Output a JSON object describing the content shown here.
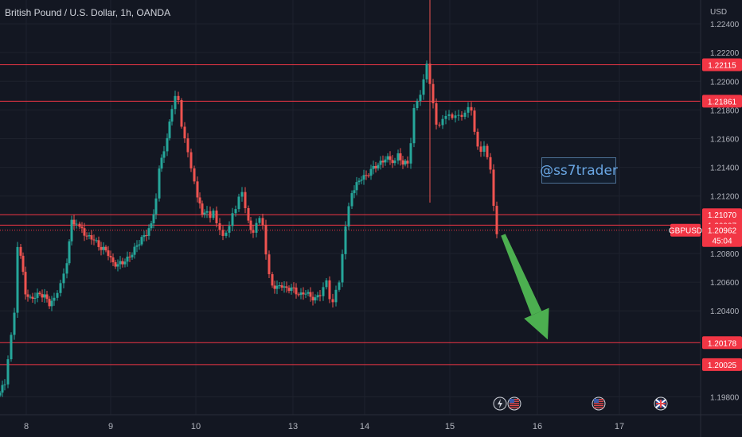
{
  "header": {
    "title": "British Pound / U.S. Dollar, 1h, OANDA",
    "currency": "USD"
  },
  "watermark": "@ss7trader",
  "symbol": "GBPUSD",
  "countdown": "45:04",
  "colors": {
    "background": "#131722",
    "up": "#26a69a",
    "down": "#ef5350",
    "level_line": "#f23645",
    "arrow": "#4caf50",
    "grid": "#1e222d",
    "text": "#b2b5be"
  },
  "chart_data": {
    "type": "candlestick",
    "title": "British Pound / U.S. Dollar, 1h, OANDA",
    "ylim": [
      1.1972,
      1.225
    ],
    "y_ticks": [
      "1.22400",
      "1.22200",
      "1.22000",
      "1.21800",
      "1.21600",
      "1.21400",
      "1.21200",
      "1.20800",
      "1.20600",
      "1.20400",
      "1.19800"
    ],
    "x_ticks": [
      "8",
      "9",
      "10",
      "13",
      "14",
      "15",
      "16",
      "17"
    ],
    "grid": true,
    "horizontal_levels": [
      {
        "label": "1.22115",
        "value": 1.22115
      },
      {
        "label": "1.21861",
        "value": 1.21861
      },
      {
        "label": "1.21070",
        "value": 1.2107
      },
      {
        "label": "1.20997",
        "value": 1.20997
      },
      {
        "label": "1.20178",
        "value": 1.20178
      },
      {
        "label": "1.20025",
        "value": 1.20025
      }
    ],
    "last_price": {
      "label": "1.20962",
      "value": 1.20962
    },
    "price_path": [
      [
        0,
        1.1983
      ],
      [
        6,
        1.199
      ],
      [
        10,
        1.2008
      ],
      [
        14,
        1.2025
      ],
      [
        18,
        1.204
      ],
      [
        22,
        1.2085
      ],
      [
        26,
        1.2078
      ],
      [
        32,
        1.2053
      ],
      [
        38,
        1.2048
      ],
      [
        44,
        1.205
      ],
      [
        50,
        1.2052
      ],
      [
        56,
        1.205
      ],
      [
        62,
        1.2045
      ],
      [
        68,
        1.2048
      ],
      [
        76,
        1.206
      ],
      [
        84,
        1.2075
      ],
      [
        90,
        1.2102
      ],
      [
        96,
        1.2101
      ],
      [
        100,
        1.2098
      ],
      [
        106,
        1.2094
      ],
      [
        112,
        1.2091
      ],
      [
        118,
        1.209
      ],
      [
        124,
        1.2085
      ],
      [
        130,
        1.2083
      ],
      [
        136,
        1.208
      ],
      [
        142,
        1.2073
      ],
      [
        148,
        1.2072
      ],
      [
        154,
        1.2074
      ],
      [
        160,
        1.2076
      ],
      [
        166,
        1.208
      ],
      [
        172,
        1.2086
      ],
      [
        178,
        1.209
      ],
      [
        184,
        1.2094
      ],
      [
        190,
        1.21
      ],
      [
        196,
        1.2118
      ],
      [
        200,
        1.2138
      ],
      [
        206,
        1.2153
      ],
      [
        210,
        1.2162
      ],
      [
        216,
        1.218
      ],
      [
        220,
        1.219
      ],
      [
        224,
        1.2188
      ],
      [
        228,
        1.217
      ],
      [
        232,
        1.2162
      ],
      [
        236,
        1.2152
      ],
      [
        240,
        1.214
      ],
      [
        244,
        1.213
      ],
      [
        248,
        1.2118
      ],
      [
        254,
        1.2109
      ],
      [
        260,
        1.2108
      ],
      [
        264,
        1.2104
      ],
      [
        268,
        1.211
      ],
      [
        272,
        1.2102
      ],
      [
        276,
        1.2098
      ],
      [
        280,
        1.2094
      ],
      [
        284,
        1.2096
      ],
      [
        288,
        1.21
      ],
      [
        292,
        1.2108
      ],
      [
        296,
        1.211
      ],
      [
        300,
        1.2118
      ],
      [
        304,
        1.2121
      ],
      [
        308,
        1.211
      ],
      [
        312,
        1.2102
      ],
      [
        318,
        1.2094
      ],
      [
        322,
        1.21
      ],
      [
        326,
        1.2103
      ],
      [
        330,
        1.2098
      ],
      [
        334,
        1.2078
      ],
      [
        338,
        1.2065
      ],
      [
        342,
        1.2058
      ],
      [
        348,
        1.2056
      ],
      [
        354,
        1.2058
      ],
      [
        360,
        1.2055
      ],
      [
        366,
        1.2056
      ],
      [
        372,
        1.2053
      ],
      [
        378,
        1.2051
      ],
      [
        384,
        1.2053
      ],
      [
        390,
        1.205
      ],
      [
        396,
        1.2048
      ],
      [
        402,
        1.2052
      ],
      [
        406,
        1.2058
      ],
      [
        410,
        1.2062
      ],
      [
        414,
        1.2048
      ],
      [
        418,
        1.2045
      ],
      [
        422,
        1.2053
      ],
      [
        426,
        1.2058
      ],
      [
        430,
        1.2078
      ],
      [
        434,
        1.2098
      ],
      [
        438,
        1.2113
      ],
      [
        442,
        1.2123
      ],
      [
        448,
        1.2128
      ],
      [
        454,
        1.2133
      ],
      [
        460,
        1.2134
      ],
      [
        466,
        1.2138
      ],
      [
        472,
        1.2141
      ],
      [
        478,
        1.2143
      ],
      [
        484,
        1.2146
      ],
      [
        490,
        1.2146
      ],
      [
        496,
        1.2143
      ],
      [
        500,
        1.2148
      ],
      [
        506,
        1.2143
      ],
      [
        512,
        1.2143
      ],
      [
        516,
        1.2158
      ],
      [
        520,
        1.2183
      ],
      [
        524,
        1.2188
      ],
      [
        528,
        1.2192
      ],
      [
        532,
        1.2202
      ],
      [
        536,
        1.2212
      ],
      [
        540,
        1.2197
      ],
      [
        544,
        1.2183
      ],
      [
        548,
        1.2168
      ],
      [
        552,
        1.2168
      ],
      [
        556,
        1.2173
      ],
      [
        560,
        1.2176
      ],
      [
        564,
        1.2178
      ],
      [
        568,
        1.2176
      ],
      [
        572,
        1.2178
      ],
      [
        576,
        1.2178
      ],
      [
        580,
        1.2176
      ],
      [
        584,
        1.2178
      ],
      [
        588,
        1.2181
      ],
      [
        592,
        1.2178
      ],
      [
        596,
        1.2163
      ],
      [
        600,
        1.2153
      ],
      [
        604,
        1.215
      ],
      [
        608,
        1.2155
      ],
      [
        612,
        1.2148
      ],
      [
        616,
        1.214
      ],
      [
        620,
        1.2115
      ],
      [
        624,
        1.2095
      ],
      [
        628,
        1.2097
      ]
    ],
    "annotations": [
      {
        "type": "arrow",
        "direction": "down",
        "from": [
          632,
          1.2093
        ],
        "to": [
          688,
          1.202
        ]
      }
    ]
  }
}
